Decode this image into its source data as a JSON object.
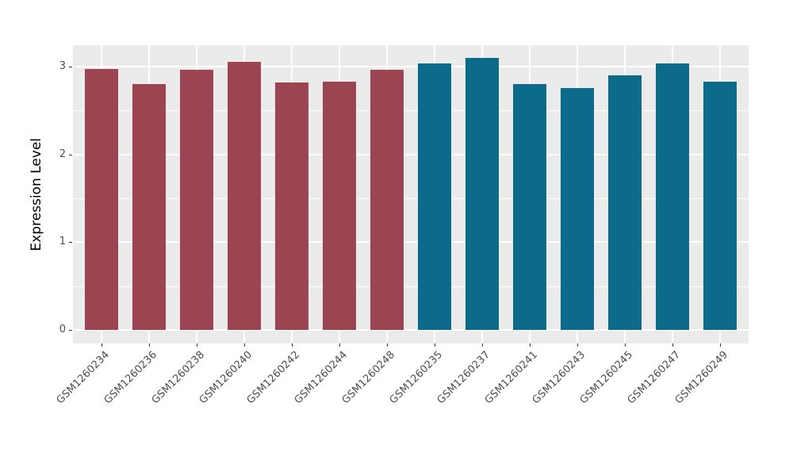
{
  "chart_data": {
    "type": "bar",
    "title": "",
    "xlabel": "",
    "ylabel": "Expression Level",
    "categories": [
      "GSM1260234",
      "GSM1260236",
      "GSM1260238",
      "GSM1260240",
      "GSM1260242",
      "GSM1260244",
      "GSM1260248",
      "GSM1260235",
      "GSM1260237",
      "GSM1260241",
      "GSM1260243",
      "GSM1260245",
      "GSM1260247",
      "GSM1260249"
    ],
    "values": [
      2.97,
      2.8,
      2.96,
      3.05,
      2.82,
      2.83,
      2.96,
      3.04,
      3.1,
      2.8,
      2.76,
      2.9,
      3.04,
      2.83
    ],
    "bar_colors": [
      "#9C4452",
      "#9C4452",
      "#9C4452",
      "#9C4452",
      "#9C4452",
      "#9C4452",
      "#9C4452",
      "#0C6B8A",
      "#0C6B8A",
      "#0C6B8A",
      "#0C6B8A",
      "#0C6B8A",
      "#0C6B8A",
      "#0C6B8A"
    ],
    "group_colors": {
      "left_group": "#9C4452",
      "right_group": "#0C6B8A"
    },
    "y_ticks": [
      "0",
      "1",
      "2",
      "3"
    ],
    "y_tick_values": [
      0,
      1,
      2,
      3
    ],
    "y_minor_values": [
      0.5,
      1.5,
      2.5
    ],
    "ylim": [
      -0.16,
      3.26
    ],
    "x_label_angle": -45,
    "grid": "on",
    "legend_position": "none",
    "theme": {
      "panel_bg": "#EBEBEB",
      "grid_color": "#FFFFFF",
      "tick_text_color": "#4D4D4D",
      "axis_title_color": "#000000",
      "tick_mark_color": "#333333",
      "figure_bg": "#FFFFFF"
    }
  }
}
